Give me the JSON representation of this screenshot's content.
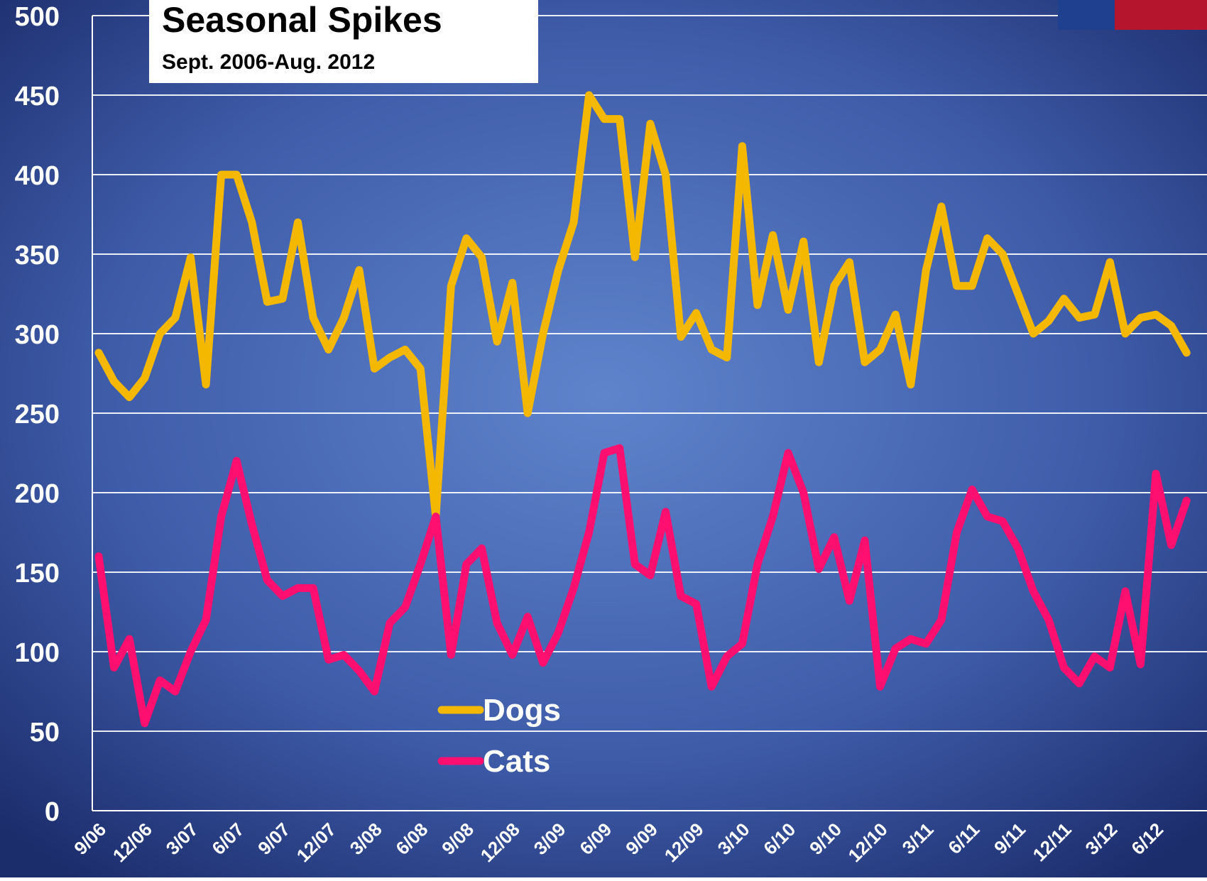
{
  "chart_data": {
    "type": "line",
    "title": "Seasonal Spikes",
    "subtitle": "Sept. 2006-Aug. 2012",
    "categories": [
      "9/06",
      null,
      null,
      "12/06",
      null,
      null,
      "3/07",
      null,
      null,
      "6/07",
      null,
      null,
      "9/07",
      null,
      null,
      "12/07",
      null,
      null,
      "3/08",
      null,
      null,
      "6/08",
      null,
      null,
      "9/08",
      null,
      null,
      "12/08",
      null,
      null,
      "3/09",
      null,
      null,
      "6/09",
      null,
      null,
      "9/09",
      null,
      null,
      "12/09",
      null,
      null,
      "3/10",
      null,
      null,
      "6/10",
      null,
      null,
      "9/10",
      null,
      null,
      "12/10",
      null,
      null,
      "3/11",
      null,
      null,
      "6/11",
      null,
      null,
      "9/11",
      null,
      null,
      "12/11",
      null,
      null,
      "3/12",
      null,
      null,
      "6/12",
      null,
      null
    ],
    "series": [
      {
        "name": "Dogs",
        "color": "#f5b800",
        "values": [
          288,
          270,
          260,
          272,
          300,
          310,
          348,
          268,
          400,
          400,
          370,
          320,
          322,
          370,
          310,
          290,
          310,
          340,
          278,
          285,
          290,
          278,
          185,
          330,
          360,
          348,
          295,
          332,
          250,
          300,
          340,
          370,
          450,
          435,
          435,
          348,
          432,
          400,
          298,
          313,
          290,
          285,
          418,
          318,
          362,
          315,
          358,
          282,
          330,
          345,
          282,
          290,
          312,
          268,
          340,
          380,
          330,
          330,
          360,
          350,
          325,
          300,
          308,
          322,
          310,
          312,
          345,
          300,
          310,
          312,
          305,
          288
        ]
      },
      {
        "name": "Cats",
        "color": "#ff1070",
        "values": [
          160,
          90,
          108,
          55,
          82,
          75,
          100,
          120,
          185,
          220,
          180,
          145,
          135,
          140,
          140,
          95,
          98,
          88,
          75,
          118,
          128,
          155,
          185,
          98,
          155,
          165,
          118,
          98,
          122,
          93,
          112,
          140,
          175,
          225,
          228,
          155,
          148,
          188,
          135,
          130,
          78,
          97,
          105,
          155,
          185,
          225,
          200,
          152,
          172,
          132,
          170,
          78,
          102,
          108,
          105,
          120,
          175,
          202,
          185,
          182,
          165,
          138,
          120,
          90,
          80,
          97,
          90,
          138,
          92,
          212,
          167,
          195
        ]
      }
    ],
    "ylim": [
      0,
      500
    ],
    "yticks": [
      0,
      50,
      100,
      150,
      200,
      250,
      300,
      350,
      400,
      450,
      500
    ],
    "grid": true
  }
}
